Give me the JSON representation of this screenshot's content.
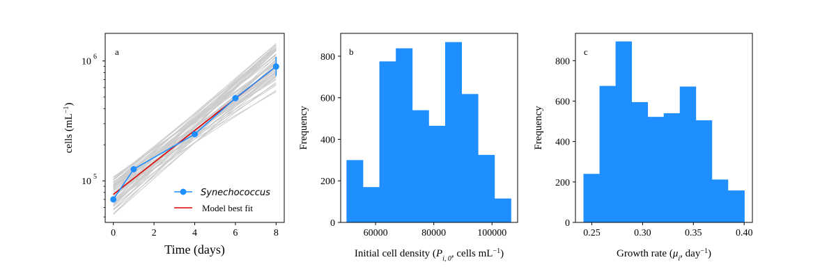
{
  "chart_data": [
    {
      "type": "line",
      "panel_label": "a",
      "xlabel": "Time (days)",
      "ylabel": "cells (mL$^{-1}$)",
      "ylabel_parts": {
        "base": "cells (mL",
        "sup": "−1",
        "tail": ")"
      },
      "yscale": "log",
      "xlim": [
        -0.4,
        8.4
      ],
      "ylim": [
        45000,
        1700000
      ],
      "xticks": [
        0,
        2,
        4,
        6,
        8
      ],
      "yticks": [
        {
          "value": 100000,
          "label_base": "10",
          "label_exp": "5"
        },
        {
          "value": 1000000,
          "label_base": "10",
          "label_exp": "6"
        }
      ],
      "series": [
        {
          "name": "Synechococcus",
          "color": "#1f8fff",
          "marker": "circle",
          "x": [
            0,
            1,
            4,
            6,
            8
          ],
          "y": [
            70000,
            125000,
            245000,
            490000,
            900000
          ],
          "yerr_high": [
            null,
            null,
            null,
            null,
            1080000
          ],
          "yerr_low": [
            null,
            null,
            null,
            null,
            750000
          ]
        },
        {
          "name": "Model best fit",
          "color": "#e00000",
          "x": [
            0,
            8
          ],
          "y": [
            77000,
            900000
          ]
        }
      ],
      "ensemble": {
        "color": "#cccccc",
        "count": 60,
        "start_range": [
          52000,
          108000
        ],
        "end_range": [
          550000,
          1400000
        ]
      },
      "legend": {
        "location": "lower-right",
        "entries": [
          {
            "label": "Synechococcus",
            "style": "italic",
            "color": "#1f8fff"
          },
          {
            "label": "Model best fit",
            "style": "normal",
            "color": "#e00000"
          }
        ]
      }
    },
    {
      "type": "bar",
      "panel_label": "b",
      "xlabel": "Initial cell density (",
      "xlabel_parts": {
        "pre": "Initial cell density (",
        "sym": "P",
        "sub": "i, 0",
        "post": ", cells mL",
        "sup": "−1",
        "end": ")"
      },
      "ylabel": "Frequency",
      "xlim": [
        48000,
        108800
      ],
      "ylim": [
        0,
        910
      ],
      "xticks": [
        60000,
        80000,
        100000
      ],
      "yticks": [
        0,
        200,
        400,
        600,
        800
      ],
      "color": "#1f8fff",
      "bin_edges": [
        50000,
        55650,
        61300,
        66950,
        72600,
        78250,
        83900,
        89550,
        95200,
        100850,
        106500
      ],
      "values": [
        300,
        170,
        775,
        838,
        540,
        465,
        868,
        618,
        325,
        115
      ]
    },
    {
      "type": "bar",
      "panel_label": "c",
      "xlabel": "Growth rate (",
      "xlabel_parts": {
        "pre": "Growth rate (",
        "sym": "μ",
        "sub": "i",
        "post": ", day",
        "sup": "−1",
        "end": ")"
      },
      "ylabel": "Frequency",
      "xlim": [
        0.2339,
        0.4081
      ],
      "ylim": [
        0,
        935
      ],
      "xticks": [
        0.25,
        0.3,
        0.35,
        0.4
      ],
      "xtick_labels": [
        "0.25",
        "0.30",
        "0.35",
        "0.40"
      ],
      "yticks": [
        0,
        200,
        400,
        600,
        800
      ],
      "color": "#1f8fff",
      "bin_edges": [
        0.2418,
        0.2576,
        0.2734,
        0.2892,
        0.305,
        0.3208,
        0.3366,
        0.3524,
        0.3682,
        0.384,
        0.4002
      ],
      "values": [
        240,
        675,
        895,
        595,
        522,
        540,
        672,
        505,
        212,
        158
      ]
    }
  ]
}
